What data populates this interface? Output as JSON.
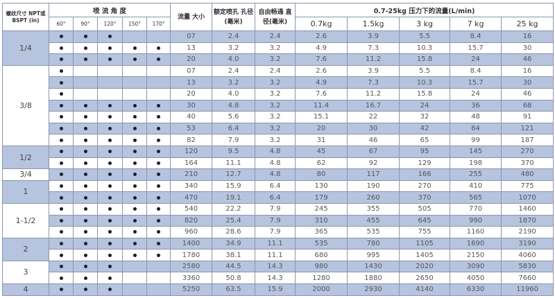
{
  "colors": {
    "row_shade": "#b7c4df",
    "border": "#8a94ac"
  },
  "header": {
    "size": "螺纹尺寸 NPT或BSPT (in)",
    "angle": "喷 流 角 度",
    "angles": [
      "60°",
      "90°",
      "120°",
      "150°",
      "170°"
    ],
    "flow_size": "流量 大小",
    "orifice": "额定喷孔 孔径(毫米)",
    "free_pass": "自由畅通 直径(毫米)",
    "pressure_group": "0.7-25kg 压力下的流量(L/min)",
    "pressures": [
      "0.7kg",
      "1.5kg",
      "3 kg",
      "7 kg",
      "25 kg"
    ]
  },
  "groups": [
    {
      "size": "1/4",
      "rows": [
        {
          "angles": [
            1,
            1,
            1,
            0,
            0
          ],
          "flow": "07",
          "orifice": "2.4",
          "free": "2.4",
          "q": [
            "2.6",
            "3.9",
            "5.5",
            "8.4",
            "16"
          ]
        },
        {
          "angles": [
            1,
            1,
            1,
            1,
            1
          ],
          "flow": "13",
          "orifice": "3.2",
          "free": "3.2",
          "q": [
            "4.9",
            "7.3",
            "10.3",
            "15.7",
            "30"
          ]
        },
        {
          "angles": [
            1,
            1,
            1,
            1,
            1
          ],
          "flow": "20",
          "orifice": "4.0",
          "free": "3.2",
          "q": [
            "7.6",
            "11.2",
            "15.8",
            "24",
            "46"
          ]
        }
      ]
    },
    {
      "size": "3/8",
      "rows": [
        {
          "angles": [
            1,
            0,
            0,
            0,
            0
          ],
          "flow": "07",
          "orifice": "2.4",
          "free": "2.4",
          "q": [
            "2.6",
            "3.9",
            "5.5",
            "8.4",
            "16"
          ]
        },
        {
          "angles": [
            1,
            0,
            0,
            0,
            0
          ],
          "flow": "13",
          "orifice": "3.2",
          "free": "3.2",
          "q": [
            "4.9",
            "7.3",
            "10.3",
            "15.7",
            "30"
          ]
        },
        {
          "angles": [
            1,
            0,
            0,
            0,
            0
          ],
          "flow": "20",
          "orifice": "4.0",
          "free": "3.2",
          "q": [
            "7.6",
            "11.2",
            "15.8",
            "24",
            "46"
          ]
        },
        {
          "angles": [
            1,
            1,
            1,
            1,
            1
          ],
          "flow": "30",
          "orifice": "4.8",
          "free": "3.2",
          "q": [
            "11.4",
            "16.7",
            "24",
            "36",
            "68"
          ]
        },
        {
          "angles": [
            1,
            1,
            1,
            1,
            1
          ],
          "flow": "40",
          "orifice": "5.6",
          "free": "3.2",
          "q": [
            "15.1",
            "22",
            "32",
            "48",
            "91"
          ]
        },
        {
          "angles": [
            1,
            1,
            1,
            1,
            1
          ],
          "flow": "53",
          "orifice": "6.4",
          "free": "3.2",
          "q": [
            "20",
            "30",
            "42",
            "64",
            "121"
          ]
        },
        {
          "angles": [
            1,
            1,
            1,
            1,
            1
          ],
          "flow": "82",
          "orifice": "7.9",
          "free": "3.2",
          "q": [
            "31",
            "46",
            "65",
            "99",
            "187"
          ]
        }
      ]
    },
    {
      "size": "1/2",
      "rows": [
        {
          "angles": [
            1,
            1,
            1,
            1,
            1
          ],
          "flow": "120",
          "orifice": "9.5",
          "free": "4.8",
          "q": [
            "45",
            "67",
            "95",
            "145",
            "270"
          ]
        },
        {
          "angles": [
            1,
            1,
            1,
            1,
            1
          ],
          "flow": "164",
          "orifice": "11.1",
          "free": "4.8",
          "q": [
            "62",
            "92",
            "129",
            "198",
            "370"
          ]
        }
      ]
    },
    {
      "size": "3/4",
      "rows": [
        {
          "angles": [
            1,
            1,
            1,
            1,
            1
          ],
          "flow": "210",
          "orifice": "12.7",
          "free": "4.8",
          "q": [
            "80",
            "117",
            "166",
            "255",
            "480"
          ]
        }
      ]
    },
    {
      "size": "1",
      "rows": [
        {
          "angles": [
            1,
            1,
            1,
            1,
            1
          ],
          "flow": "340",
          "orifice": "15.9",
          "free": "6.4",
          "q": [
            "130",
            "190",
            "270",
            "410",
            "775"
          ]
        },
        {
          "angles": [
            1,
            1,
            1,
            1,
            1
          ],
          "flow": "470",
          "orifice": "19.1",
          "free": "6.4",
          "q": [
            "179",
            "260",
            "370",
            "565",
            "1070"
          ]
        }
      ]
    },
    {
      "size": "1-1/2",
      "rows": [
        {
          "angles": [
            1,
            1,
            1,
            1,
            1
          ],
          "flow": "540",
          "orifice": "22.2",
          "free": "7.9",
          "q": [
            "245",
            "355",
            "505",
            "770",
            "1460"
          ]
        },
        {
          "angles": [
            1,
            1,
            1,
            1,
            1
          ],
          "flow": "820",
          "orifice": "25.4",
          "free": "7.9",
          "q": [
            "310",
            "455",
            "645",
            "990",
            "1870"
          ]
        },
        {
          "angles": [
            1,
            1,
            1,
            1,
            1
          ],
          "flow": "960",
          "orifice": "28.6",
          "free": "7.9",
          "q": [
            "365",
            "535",
            "755",
            "1160",
            "2190"
          ]
        }
      ]
    },
    {
      "size": "2",
      "rows": [
        {
          "angles": [
            1,
            1,
            1,
            1,
            1
          ],
          "flow": "1400",
          "orifice": "34.9",
          "free": "11.1",
          "q": [
            "535",
            "780",
            "1105",
            "1690",
            "3190"
          ]
        },
        {
          "angles": [
            1,
            1,
            1,
            1,
            1
          ],
          "flow": "1780",
          "orifice": "38.1",
          "free": "11.1",
          "q": [
            "680",
            "995",
            "1405",
            "2150",
            "4060"
          ]
        }
      ]
    },
    {
      "size": "3",
      "rows": [
        {
          "angles": [
            1,
            1,
            1,
            0,
            0
          ],
          "flow": "2580",
          "orifice": "44.5",
          "free": "14.3",
          "q": [
            "980",
            "1430",
            "2020",
            "3090",
            "5830"
          ]
        },
        {
          "angles": [
            1,
            1,
            1,
            0,
            0
          ],
          "flow": "3360",
          "orifice": "50.8",
          "free": "14.3",
          "q": [
            "1280",
            "1880",
            "2650",
            "4050",
            "7660"
          ]
        }
      ]
    },
    {
      "size": "4",
      "rows": [
        {
          "angles": [
            1,
            1,
            1,
            0,
            0
          ],
          "flow": "5250",
          "orifice": "63.5",
          "free": "15.9",
          "q": [
            "2000",
            "2930",
            "4140",
            "6330",
            "11960"
          ]
        }
      ]
    }
  ]
}
